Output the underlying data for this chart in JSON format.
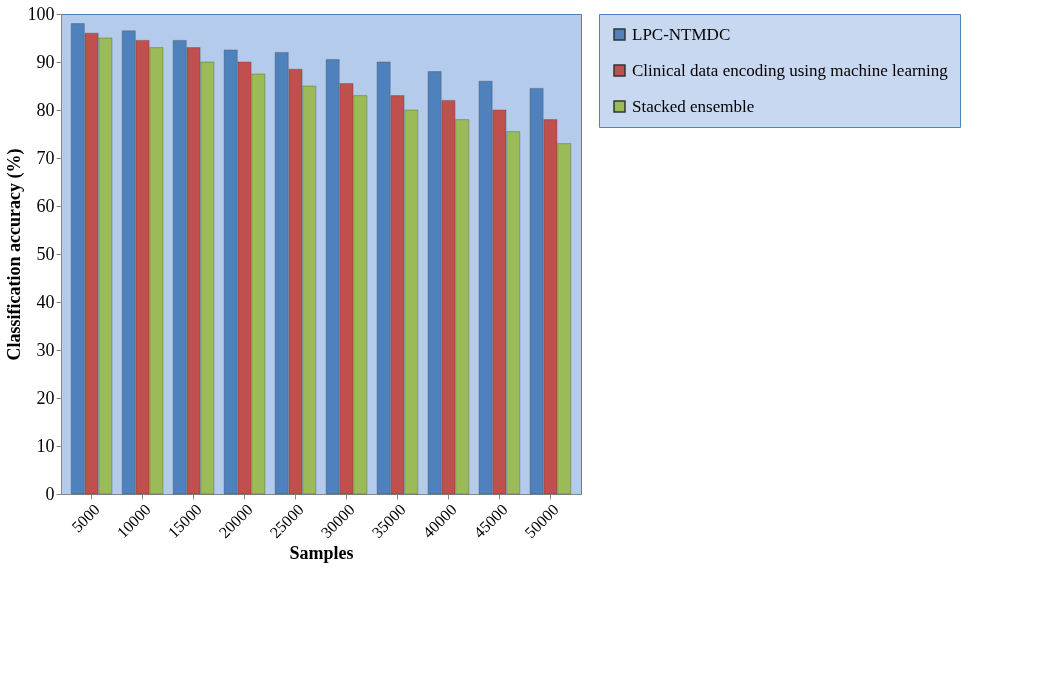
{
  "chart_data": {
    "type": "bar",
    "xlabel": "Samples",
    "ylabel": "Classification accuracy (%)",
    "categories": [
      "5000",
      "10000",
      "15000",
      "20000",
      "25000",
      "30000",
      "35000",
      "40000",
      "45000",
      "50000"
    ],
    "series": [
      {
        "name": "LPC-NTMDC",
        "color": "#4f81bd",
        "values": [
          98,
          96.5,
          94.5,
          92.5,
          92,
          90.5,
          90,
          88,
          86,
          84.5
        ]
      },
      {
        "name": "Clinical data encoding using machine learning",
        "color": "#c0504d",
        "values": [
          96,
          94.5,
          93,
          90,
          88.5,
          85.5,
          83,
          82,
          80,
          78
        ]
      },
      {
        "name": "Stacked ensemble",
        "color": "#9bbb59",
        "values": [
          95,
          93,
          90,
          87.5,
          85,
          83,
          80,
          78,
          75.5,
          73
        ]
      }
    ],
    "ylim": [
      0,
      100
    ],
    "yticks": [
      0,
      10,
      20,
      30,
      40,
      50,
      60,
      70,
      80,
      90,
      100
    ],
    "grid": false,
    "legend": "right"
  }
}
